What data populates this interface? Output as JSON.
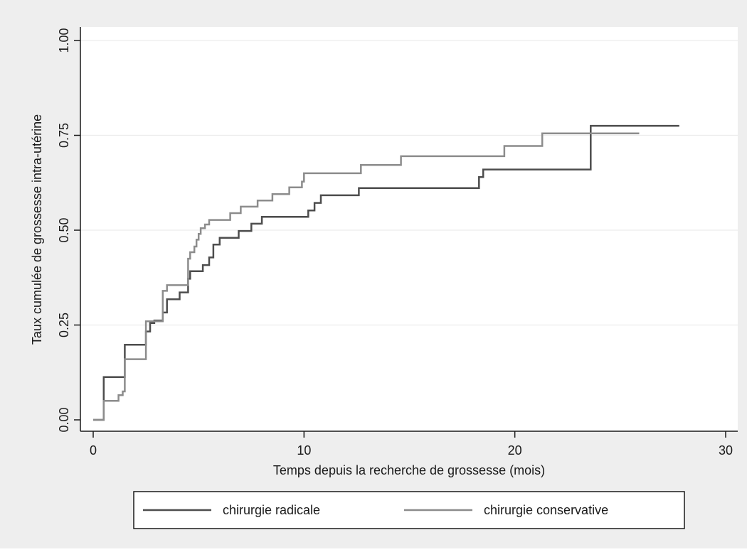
{
  "chart_data": {
    "type": "line",
    "step": true,
    "title": "",
    "xlabel": "Temps depuis la recherche de grossesse (mois)",
    "ylabel": "Taux cumulée de grossesse intra-utérine",
    "xlim": [
      0,
      30
    ],
    "ylim": [
      0,
      1
    ],
    "x_ticks": [
      "0",
      "10",
      "20",
      "30"
    ],
    "y_ticks": [
      "0.00",
      "0.25",
      "0.50",
      "0.75",
      "1.00"
    ],
    "grid": "horizontal",
    "legend_position": "bottom",
    "series": [
      {
        "name": "chirurgie radicale",
        "color": "#4d4d4d",
        "x": [
          0,
          0.5,
          1.5,
          2.5,
          2.7,
          2.9,
          3.3,
          3.5,
          3.6,
          4.1,
          4.5,
          4.6,
          4.8,
          5.2,
          5.5,
          5.7,
          6.0,
          6.5,
          6.9,
          7.5,
          8.0,
          10.2,
          10.5,
          10.8,
          12.6,
          18.3,
          18.5,
          23.6,
          27.8
        ],
        "y": [
          0,
          0.113,
          0.198,
          0.233,
          0.255,
          0.262,
          0.283,
          0.318,
          0.318,
          0.336,
          0.372,
          0.392,
          0.392,
          0.408,
          0.428,
          0.462,
          0.48,
          0.48,
          0.498,
          0.517,
          0.535,
          0.552,
          0.572,
          0.592,
          0.611,
          0.64,
          0.66,
          0.775,
          0.775
        ]
      },
      {
        "name": "chirurgie conservative",
        "color": "#8c8c8c",
        "x": [
          0,
          0.5,
          1.2,
          1.4,
          1.5,
          2.5,
          2.6,
          3.3,
          3.5,
          3.8,
          4.5,
          4.6,
          4.8,
          4.9,
          5.0,
          5.1,
          5.3,
          5.5,
          6.5,
          7.0,
          7.8,
          8.5,
          9.3,
          9.9,
          10.0,
          12.7,
          14.6,
          19.5,
          21.3,
          25.9
        ],
        "y": [
          0,
          0.05,
          0.065,
          0.075,
          0.16,
          0.26,
          0.26,
          0.34,
          0.355,
          0.355,
          0.425,
          0.442,
          0.457,
          0.475,
          0.49,
          0.505,
          0.515,
          0.527,
          0.545,
          0.562,
          0.578,
          0.595,
          0.613,
          0.628,
          0.65,
          0.672,
          0.695,
          0.722,
          0.755,
          0.755
        ]
      }
    ]
  }
}
